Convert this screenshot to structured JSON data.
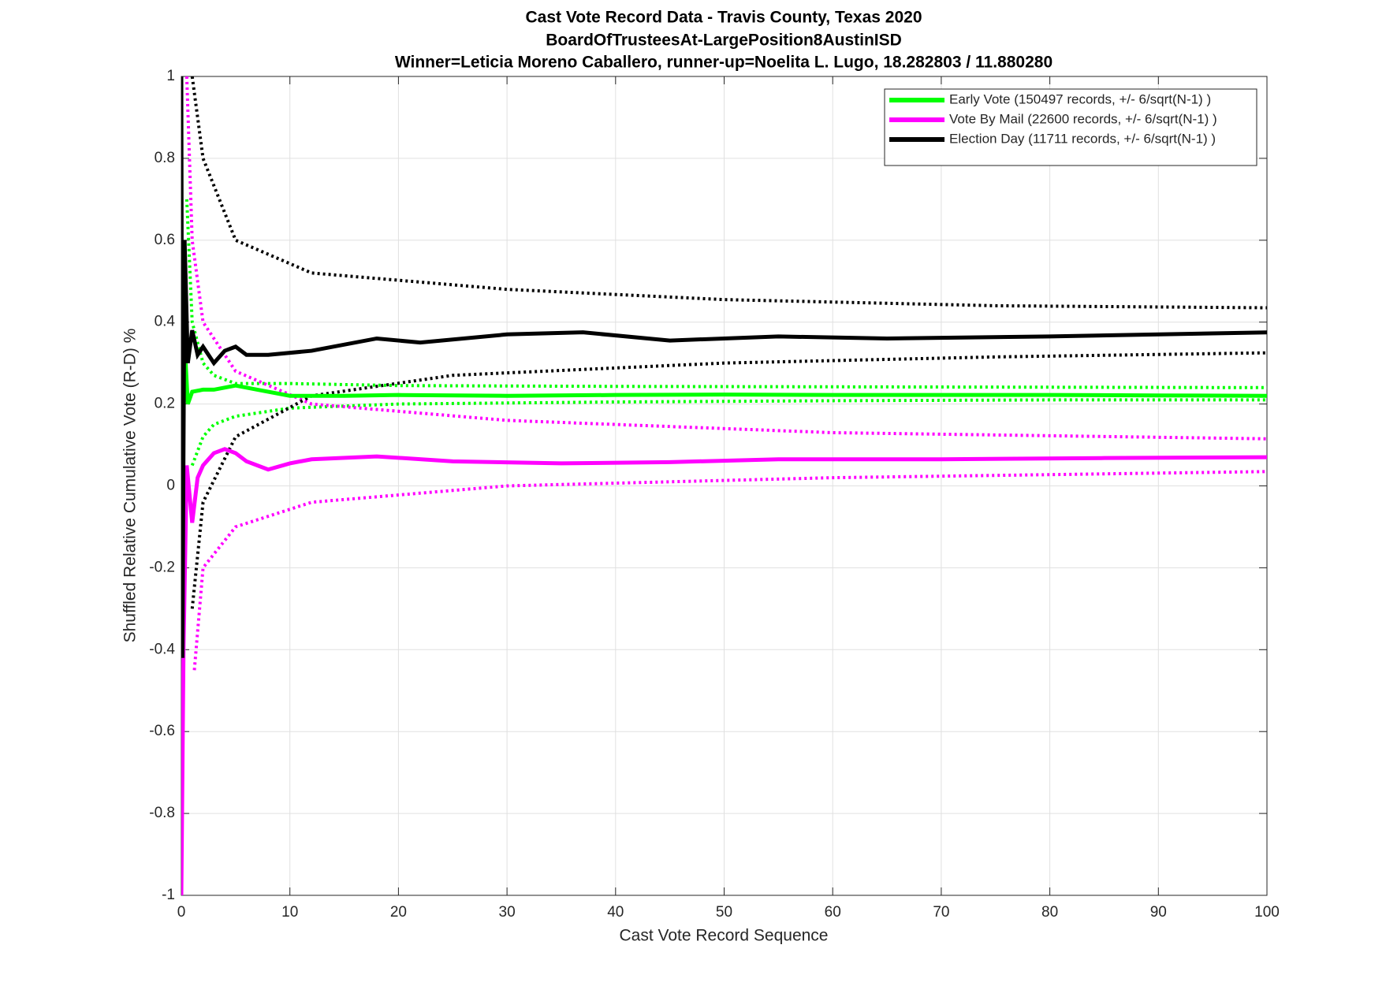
{
  "chart_data": {
    "type": "line",
    "title": "Cast Vote Record Data - Travis County, Texas 2020",
    "subtitle": "BoardOfTrusteesAt-LargePosition8AustinISD",
    "annotation": "Winner=Leticia Moreno Caballero, runner-up=Noelita L. Lugo, 18.282803 / 11.880280",
    "x_label": "Cast Vote Record Sequence",
    "y_label": "Shuffled Relative Cumulative Vote (R-D) %",
    "xlim": [
      0,
      100
    ],
    "xticks": [
      0,
      10,
      20,
      30,
      40,
      50,
      60,
      70,
      80,
      90,
      100
    ],
    "ylim": [
      -1,
      1
    ],
    "yticks": [
      -1,
      -0.8,
      -0.6,
      -0.4,
      -0.2,
      0,
      0.2,
      0.4,
      0.6,
      0.8,
      1
    ],
    "grid": true,
    "legend": "top-right",
    "series": [
      {
        "name": "Early Vote (150497 records, +/- 6/sqrt(N-1) )",
        "color": "#00ff00",
        "style": "solid",
        "x": [
          0,
          0.3,
          0.6,
          1,
          2,
          3,
          5,
          7,
          10,
          15,
          20,
          30,
          40,
          50,
          60,
          70,
          80,
          90,
          100
        ],
        "values": [
          0.6,
          0.35,
          0.2,
          0.23,
          0.235,
          0.235,
          0.245,
          0.235,
          0.22,
          0.22,
          0.222,
          0.22,
          0.222,
          0.223,
          0.222,
          0.222,
          0.222,
          0.221,
          0.22
        ]
      },
      {
        "name": "Vote By Mail (22600 records, +/- 6/sqrt(N-1) )",
        "color": "#ff00ff",
        "style": "solid",
        "x": [
          0,
          0.2,
          0.5,
          1,
          1.5,
          2,
          3,
          4,
          5,
          6,
          8,
          10,
          12,
          18,
          25,
          35,
          45,
          55,
          70,
          85,
          100
        ],
        "values": [
          -1,
          -0.4,
          0.05,
          -0.09,
          0.02,
          0.05,
          0.08,
          0.09,
          0.08,
          0.06,
          0.04,
          0.055,
          0.065,
          0.072,
          0.06,
          0.055,
          0.058,
          0.065,
          0.065,
          0.068,
          0.07
        ]
      },
      {
        "name": "Election Day (11711 records, +/- 6/sqrt(N-1) )",
        "color": "#000000",
        "style": "solid",
        "x": [
          0,
          0.1,
          0.3,
          0.6,
          1,
          1.5,
          2,
          3,
          4,
          5,
          6,
          8,
          12,
          18,
          22,
          30,
          37,
          45,
          55,
          65,
          80,
          100
        ],
        "values": [
          1,
          -0.42,
          0.6,
          0.3,
          0.38,
          0.32,
          0.34,
          0.3,
          0.33,
          0.34,
          0.32,
          0.32,
          0.33,
          0.36,
          0.35,
          0.37,
          0.375,
          0.355,
          0.365,
          0.36,
          0.365,
          0.375
        ]
      },
      {
        "color": "#00ff00",
        "style": "dotted",
        "x": [
          0.5,
          1,
          2,
          3,
          5,
          10,
          20,
          40,
          60,
          80,
          100
        ],
        "values": [
          0.7,
          0.4,
          0.3,
          0.27,
          0.25,
          0.25,
          0.245,
          0.243,
          0.242,
          0.241,
          0.24
        ]
      },
      {
        "color": "#00ff00",
        "style": "dotted",
        "x": [
          1,
          2,
          3,
          5,
          10,
          20,
          40,
          60,
          80,
          100
        ],
        "values": [
          0.05,
          0.12,
          0.15,
          0.17,
          0.19,
          0.2,
          0.205,
          0.208,
          0.21,
          0.21
        ]
      },
      {
        "color": "#ff00ff",
        "style": "dotted",
        "x": [
          0.5,
          1,
          2,
          5,
          12,
          30,
          60,
          100
        ],
        "values": [
          1,
          0.6,
          0.4,
          0.28,
          0.2,
          0.16,
          0.13,
          0.115
        ]
      },
      {
        "color": "#ff00ff",
        "style": "dotted",
        "x": [
          1.2,
          2,
          5,
          12,
          30,
          60,
          100
        ],
        "values": [
          -0.45,
          -0.2,
          -0.1,
          -0.04,
          0,
          0.02,
          0.035
        ]
      },
      {
        "color": "#000000",
        "style": "dotted",
        "x": [
          1,
          2,
          5,
          12,
          30,
          50,
          75,
          100
        ],
        "values": [
          1,
          0.8,
          0.6,
          0.52,
          0.48,
          0.455,
          0.44,
          0.435
        ]
      },
      {
        "color": "#000000",
        "style": "dotted",
        "x": [
          1,
          2,
          5,
          12,
          25,
          50,
          75,
          100
        ],
        "values": [
          -0.3,
          -0.04,
          0.12,
          0.22,
          0.27,
          0.3,
          0.315,
          0.325
        ]
      }
    ]
  }
}
